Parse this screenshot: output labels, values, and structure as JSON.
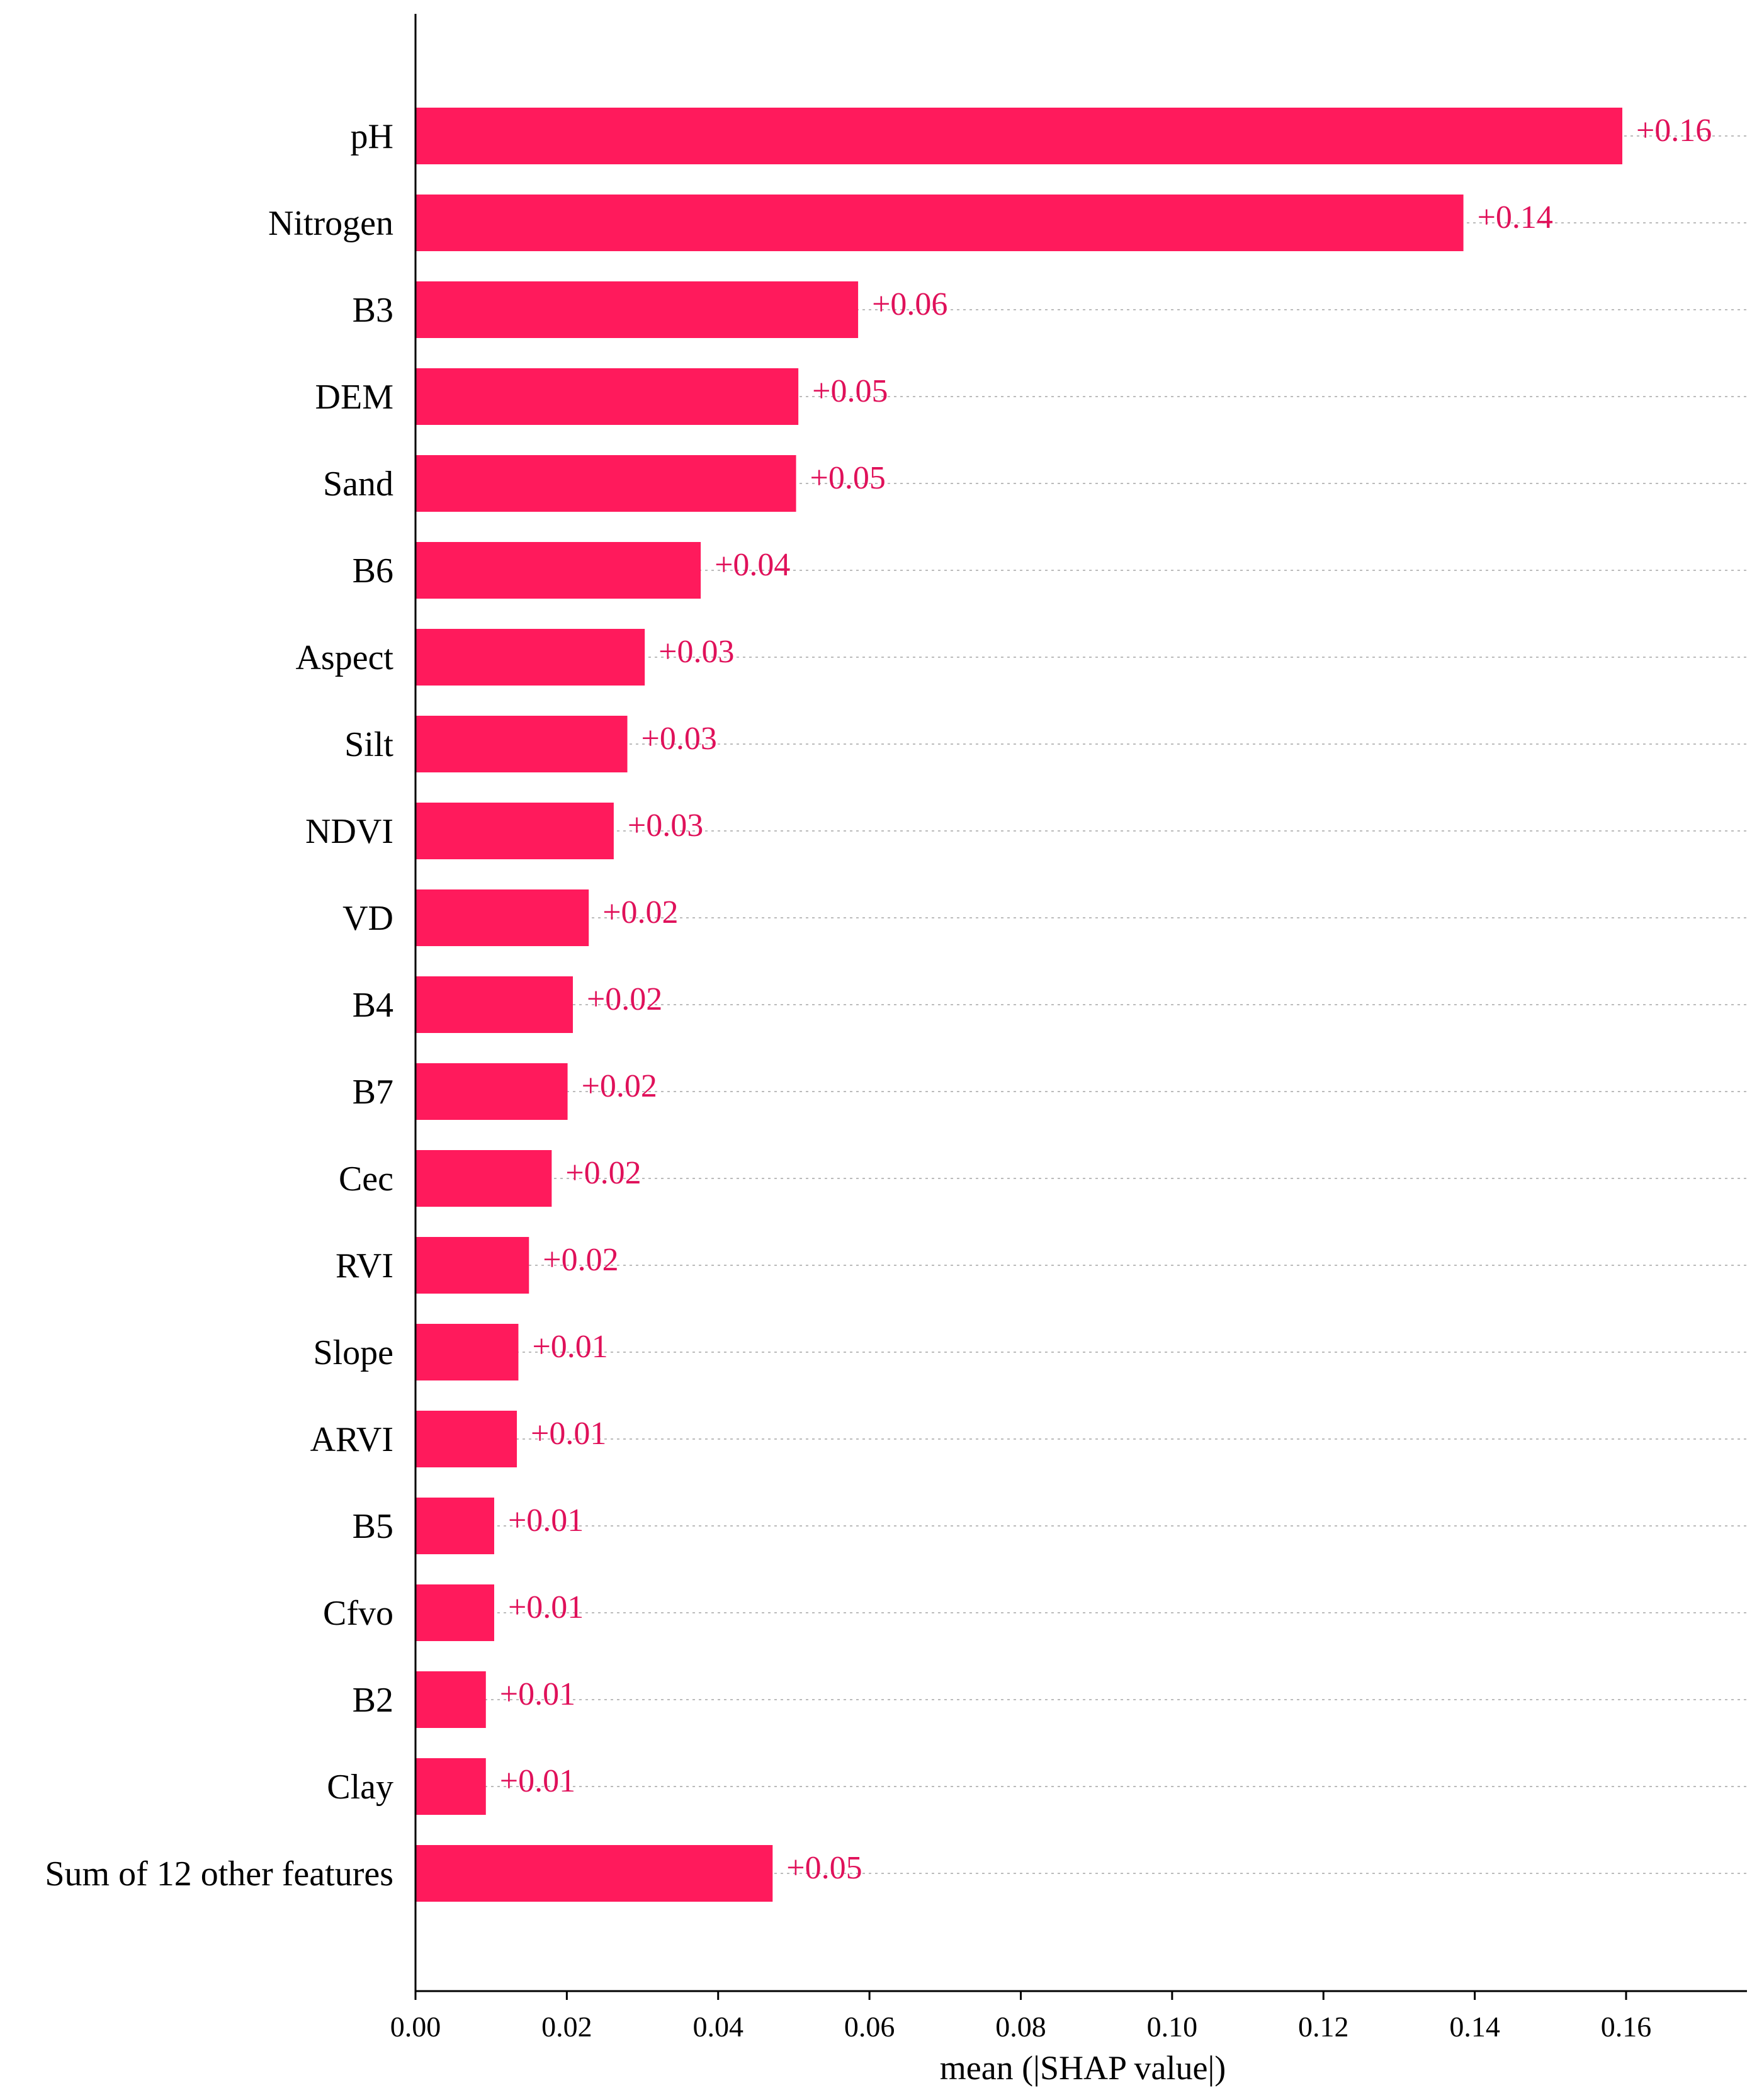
{
  "colors": {
    "bar": "#ff1a5c",
    "value_text": "#e0115a",
    "axis": "#000000",
    "gridline": "#bbbbbb"
  },
  "chart_data": {
    "type": "bar",
    "orientation": "horizontal",
    "title": "",
    "xlabel": "mean (|SHAP value|)",
    "ylabel": "",
    "xlim": [
      0,
      0.175
    ],
    "xticks": [
      0.0,
      0.02,
      0.04,
      0.06,
      0.08,
      0.1,
      0.12,
      0.14,
      0.16
    ],
    "xtick_labels": [
      "0.00",
      "0.02",
      "0.04",
      "0.06",
      "0.08",
      "0.10",
      "0.12",
      "0.14",
      "0.16"
    ],
    "grid": "dotted horizontal lines per feature",
    "categories": [
      "pH",
      "Nitrogen",
      "B3",
      "DEM",
      "Sand",
      "B6",
      "Aspect",
      "Silt",
      "NDVI",
      "VD",
      "B4",
      "B7",
      "Cec",
      "RVI",
      "Slope",
      "ARVI",
      "B5",
      "Cfvo",
      "B2",
      "Clay",
      "Sum of 12 other features"
    ],
    "values": [
      0.1595,
      0.1385,
      0.0585,
      0.0506,
      0.0503,
      0.0377,
      0.0303,
      0.028,
      0.0262,
      0.0229,
      0.0208,
      0.0201,
      0.018,
      0.015,
      0.0136,
      0.0134,
      0.0104,
      0.0104,
      0.0093,
      0.0093,
      0.0472
    ],
    "value_labels": [
      "+0.16",
      "+0.14",
      "+0.06",
      "+0.05",
      "+0.05",
      "+0.04",
      "+0.03",
      "+0.03",
      "+0.03",
      "+0.02",
      "+0.02",
      "+0.02",
      "+0.02",
      "+0.02",
      "+0.01",
      "+0.01",
      "+0.01",
      "+0.01",
      "+0.01",
      "+0.01",
      "+0.05"
    ]
  }
}
